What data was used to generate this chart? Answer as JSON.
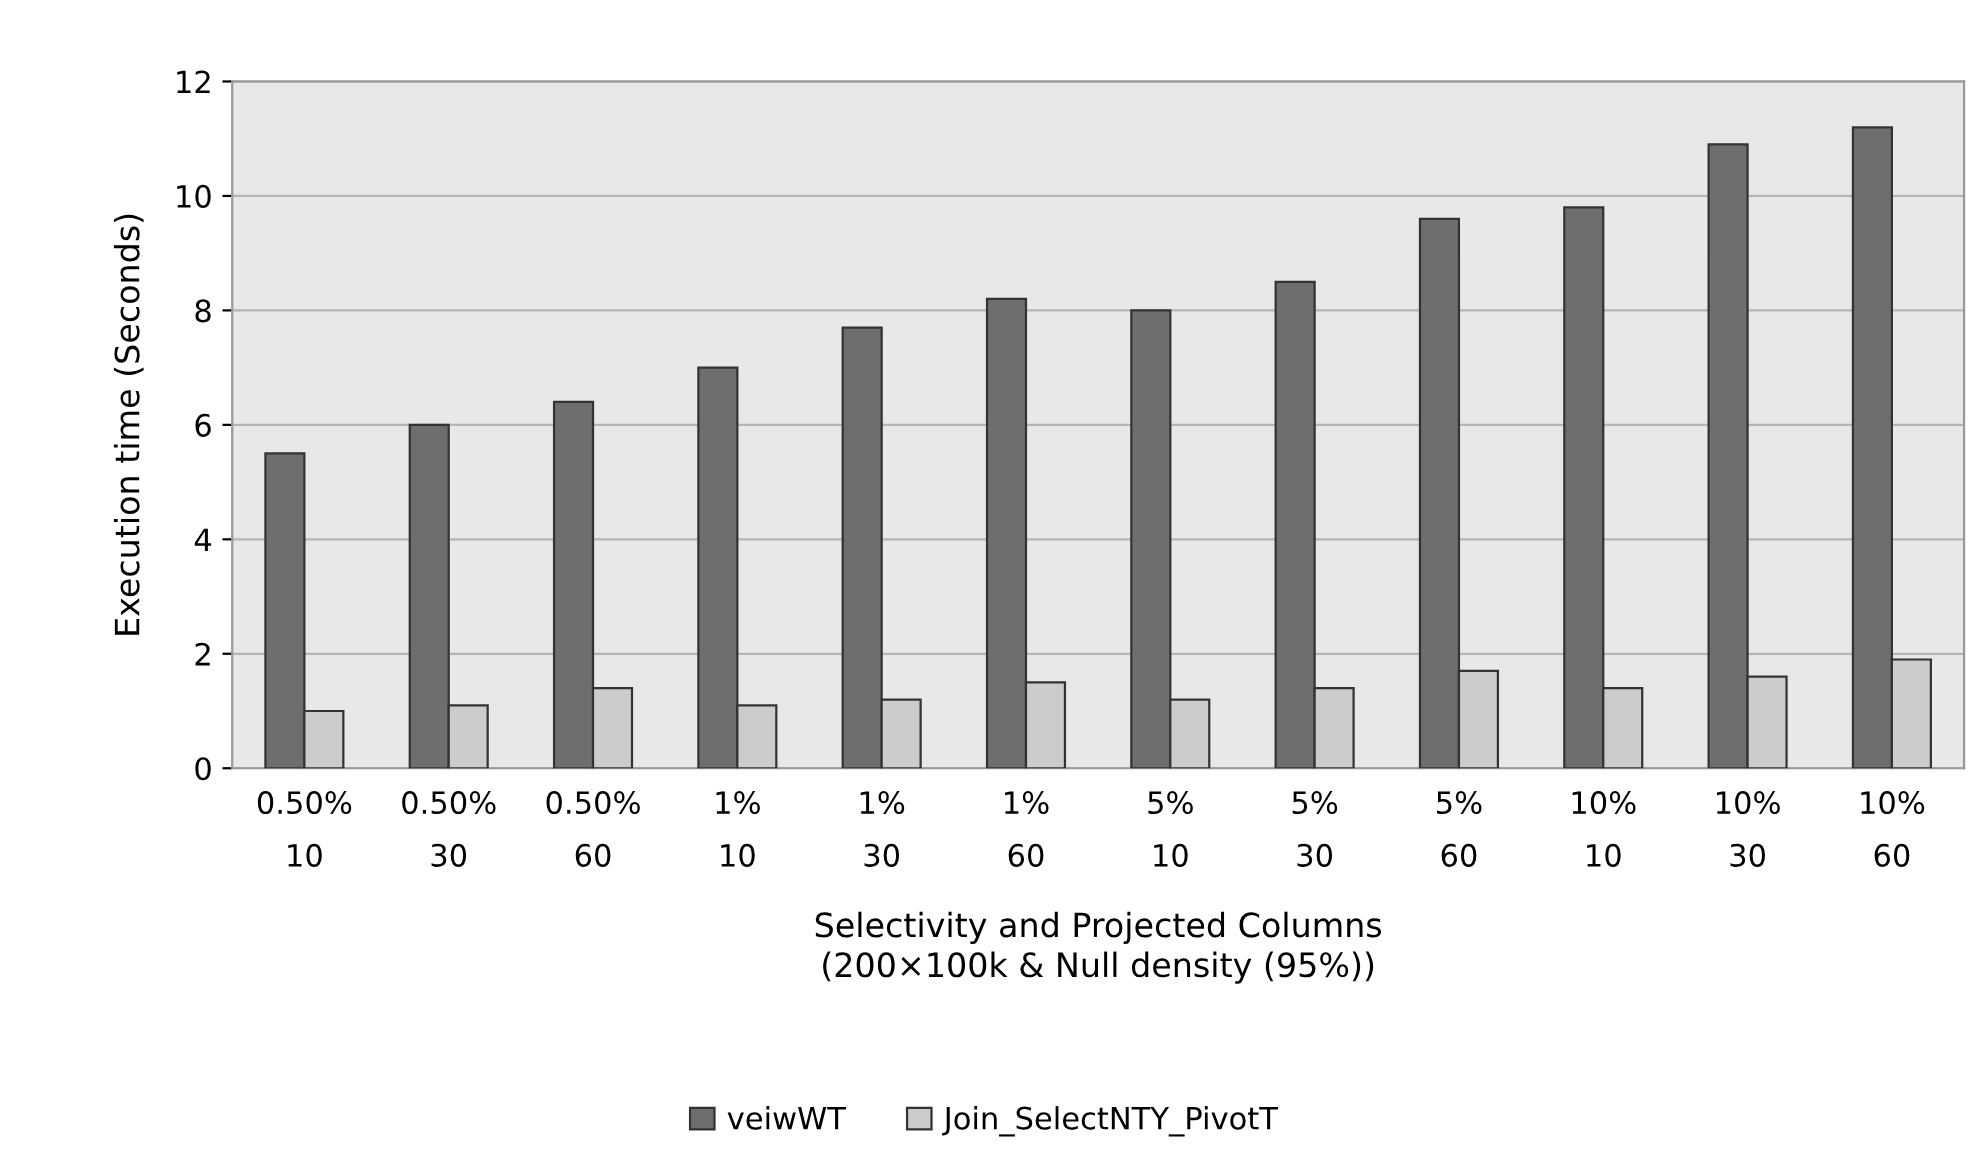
{
  "chart_data": {
    "type": "bar",
    "xlabel": "Selectivity and Projected Columns\n(200×100k & Null density (95%))",
    "ylabel": "Execution time (Seconds)",
    "categories": [
      "0.50%\n10",
      "0.50%\n30",
      "0.50%\n60",
      "1%\n10",
      "1%\n30",
      "1%\n60",
      "5%\n10",
      "5%\n30",
      "5%\n60",
      "10%\n10",
      "10%\n30",
      "10%\n60"
    ],
    "series": [
      {
        "name": "veiwWT",
        "color": "#6e6e6e",
        "values": [
          5.5,
          6.0,
          6.4,
          7.0,
          7.7,
          8.2,
          8.0,
          8.5,
          9.6,
          9.8,
          10.9,
          11.2
        ]
      },
      {
        "name": "Join_SelectNTY_PivotT",
        "color": "#cccccc",
        "values": [
          1.0,
          1.1,
          1.4,
          1.1,
          1.2,
          1.5,
          1.2,
          1.4,
          1.7,
          1.4,
          1.6,
          1.9
        ]
      }
    ],
    "ylim": [
      0,
      12
    ],
    "yticks": [
      0,
      2,
      4,
      6,
      8,
      10,
      12
    ],
    "grid": "y",
    "legend": "bottom"
  }
}
